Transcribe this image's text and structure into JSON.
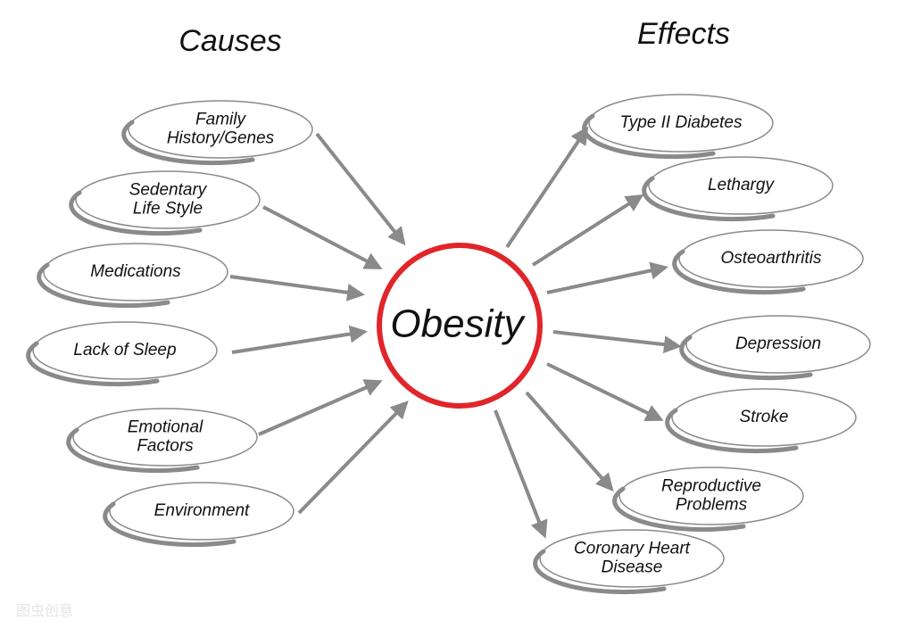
{
  "headings": {
    "causes": "Causes",
    "effects": "Effects"
  },
  "center": "Obesity",
  "causes": [
    {
      "lines": [
        "Family",
        "History/Genes"
      ]
    },
    {
      "lines": [
        "Sedentary",
        "Life Style"
      ]
    },
    {
      "lines": [
        "Medications"
      ]
    },
    {
      "lines": [
        "Lack of Sleep"
      ]
    },
    {
      "lines": [
        "Emotional",
        "Factors"
      ]
    },
    {
      "lines": [
        "Environment"
      ]
    }
  ],
  "effects": [
    {
      "lines": [
        "Type II Diabetes"
      ]
    },
    {
      "lines": [
        "Lethargy"
      ]
    },
    {
      "lines": [
        "Osteoarthritis"
      ]
    },
    {
      "lines": [
        "Depression"
      ]
    },
    {
      "lines": [
        "Stroke"
      ]
    },
    {
      "lines": [
        "Reproductive",
        "Problems"
      ]
    },
    {
      "lines": [
        "Coronary Heart",
        "Disease"
      ]
    }
  ],
  "watermark": "图虫创意"
}
